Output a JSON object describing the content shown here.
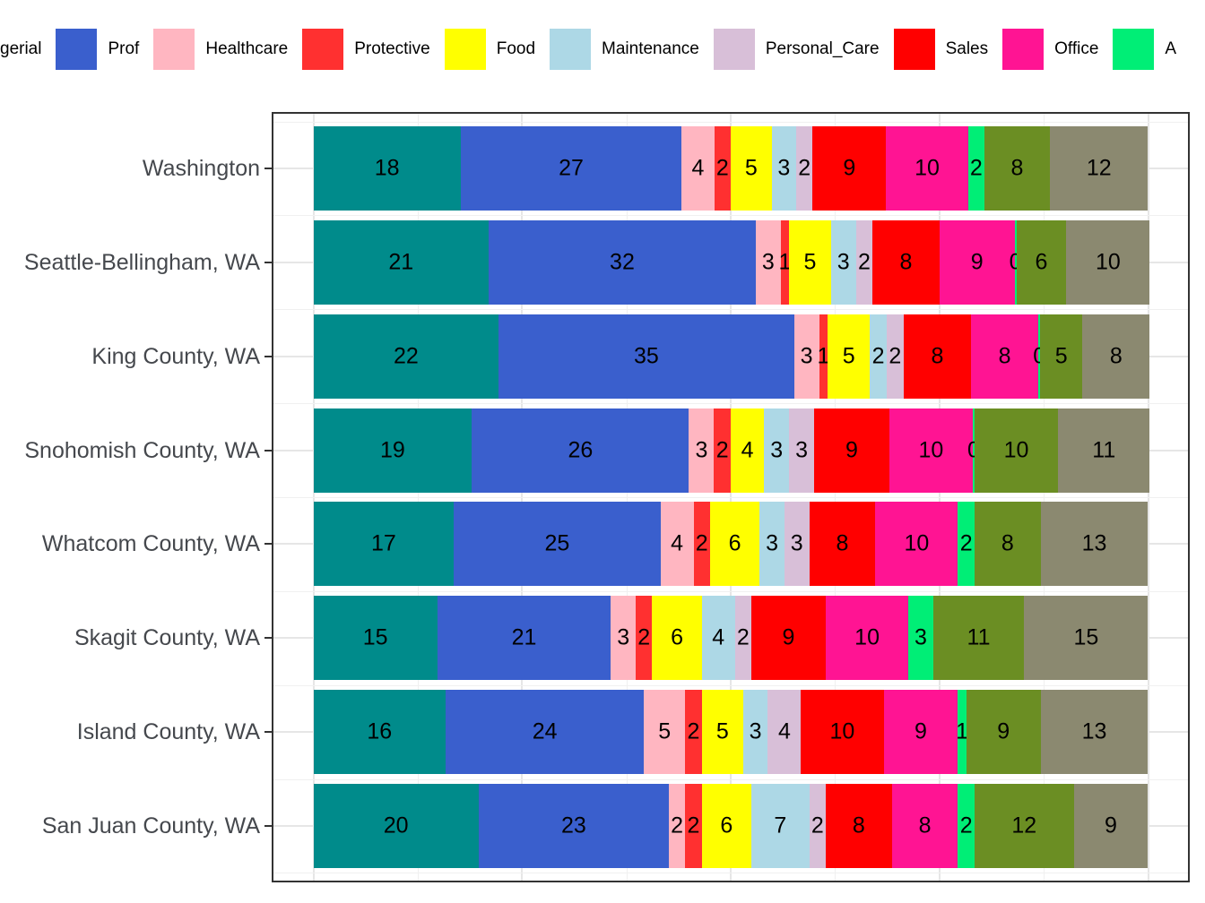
{
  "legend": {
    "position": "top, horizontally clipped at both image edges",
    "items": [
      {
        "label": "gerial",
        "color": null
      },
      {
        "label": "Prof",
        "color": "#3A5FCD"
      },
      {
        "label": "Healthcare",
        "color": "#FFB6C1"
      },
      {
        "label": "Protective",
        "color": "#FF3030"
      },
      {
        "label": "Food",
        "color": "#FFFF00"
      },
      {
        "label": "Maintenance",
        "color": "#ADD8E6"
      },
      {
        "label": "Personal_Care",
        "color": "#D8BFD8"
      },
      {
        "label": "Sales",
        "color": "#FF0000"
      },
      {
        "label": "Office",
        "color": "#FF1493"
      },
      {
        "label": "A",
        "color": "#00EE76"
      }
    ]
  },
  "chart_data": {
    "type": "bar",
    "orientation": "horizontal",
    "stacking": "fill-normalized stacked bars; segment labels are rounded percent values",
    "title": "",
    "xlabel": "",
    "ylabel": "",
    "x_axis": {
      "range": [
        0,
        1
      ],
      "tick_labels_visible": false,
      "grid": "major every 0.25, minor every 0.125"
    },
    "categories": [
      "Washington",
      "Seattle-Bellingham, WA",
      "King County, WA",
      "Snohomish County, WA",
      "Whatcom County, WA",
      "Skagit County, WA",
      "Island County, WA",
      "San Juan County, WA"
    ],
    "series": [
      {
        "name": "gerial (legend label clipped at left edge)",
        "color": "#008B8B",
        "values": [
          18,
          21,
          22,
          19,
          17,
          15,
          16,
          20
        ]
      },
      {
        "name": "Prof",
        "color": "#3A5FCD",
        "values": [
          27,
          32,
          35,
          26,
          25,
          21,
          24,
          23
        ]
      },
      {
        "name": "Healthcare",
        "color": "#FFB6C1",
        "values": [
          4,
          3,
          3,
          3,
          4,
          3,
          5,
          2
        ]
      },
      {
        "name": "Protective",
        "color": "#FF3030",
        "values": [
          2,
          1,
          1,
          2,
          2,
          2,
          2,
          2
        ]
      },
      {
        "name": "Food",
        "color": "#FFFF00",
        "values": [
          5,
          5,
          5,
          4,
          6,
          6,
          5,
          6
        ]
      },
      {
        "name": "Maintenance",
        "color": "#ADD8E6",
        "values": [
          3,
          3,
          2,
          3,
          3,
          4,
          3,
          7
        ]
      },
      {
        "name": "Personal_Care",
        "color": "#D8BFD8",
        "values": [
          2,
          2,
          2,
          3,
          3,
          2,
          4,
          2
        ]
      },
      {
        "name": "Sales",
        "color": "#FF0000",
        "values": [
          9,
          8,
          8,
          9,
          8,
          9,
          10,
          8
        ]
      },
      {
        "name": "Office",
        "color": "#FF1493",
        "values": [
          10,
          9,
          8,
          10,
          10,
          10,
          9,
          8
        ]
      },
      {
        "name": "A (legend label clipped at right edge)",
        "color": "#00EE76",
        "values": [
          2,
          0,
          0,
          0,
          2,
          3,
          1,
          2
        ]
      },
      {
        "name": "(olive segment, legend off-screen)",
        "color": "#6B8E23",
        "values": [
          8,
          6,
          5,
          10,
          8,
          11,
          9,
          12
        ]
      },
      {
        "name": "(gray segment, legend off-screen)",
        "color": "#8B8970",
        "values": [
          12,
          10,
          8,
          11,
          13,
          15,
          13,
          9
        ]
      }
    ],
    "legend_position": "top"
  },
  "colors": {
    "background": "#FFFFFF",
    "panel_border": "#333333",
    "grid_major": "#E6E6E6",
    "grid_minor": "#F0F0F0",
    "axis_text": "#45484D",
    "bar_value_text": "#000000",
    "tick": "#333333"
  }
}
